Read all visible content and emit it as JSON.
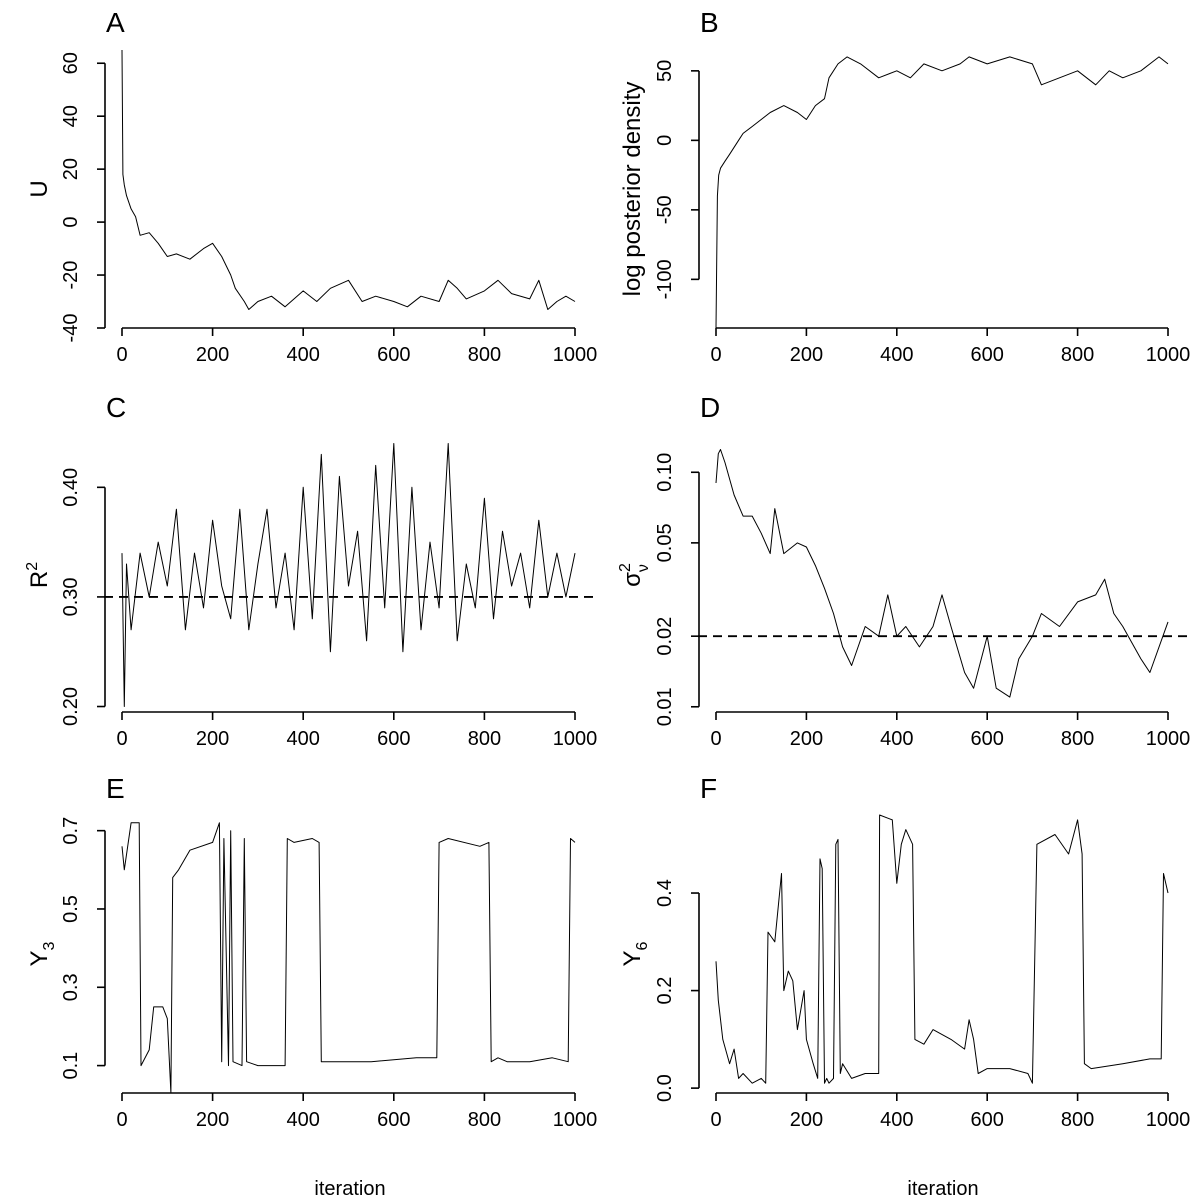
{
  "xlabel": "iteration",
  "chart_data": [
    {
      "panel": "A",
      "type": "line",
      "ylabel": "U",
      "xlim": [
        0,
        1000
      ],
      "ylim": [
        -40,
        65
      ],
      "xticks": [
        0,
        200,
        400,
        600,
        800,
        1000
      ],
      "yticks": [
        -40,
        -20,
        0,
        20,
        40,
        60
      ],
      "series": [
        {
          "x": [
            0,
            2,
            5,
            10,
            20,
            30,
            40,
            60,
            80,
            100,
            120,
            150,
            180,
            200,
            220,
            240,
            250,
            270,
            280,
            300,
            330,
            360,
            400,
            430,
            460,
            500,
            530,
            560,
            600,
            630,
            660,
            700,
            720,
            740,
            760,
            800,
            830,
            860,
            900,
            920,
            940,
            960,
            980,
            1000
          ],
          "y": [
            65,
            18,
            14,
            10,
            5,
            2,
            -5,
            -4,
            -8,
            -13,
            -12,
            -14,
            -10,
            -8,
            -13,
            -20,
            -25,
            -30,
            -33,
            -30,
            -28,
            -32,
            -26,
            -30,
            -25,
            -22,
            -30,
            -28,
            -30,
            -32,
            -28,
            -30,
            -22,
            -25,
            -29,
            -26,
            -22,
            -27,
            -29,
            -22,
            -33,
            -30,
            -28,
            -30
          ]
        }
      ]
    },
    {
      "panel": "B",
      "type": "line",
      "ylabel": "log posterior density",
      "xlim": [
        0,
        1000
      ],
      "ylim": [
        -135,
        65
      ],
      "xticks": [
        0,
        200,
        400,
        600,
        800,
        1000
      ],
      "yticks": [
        -100,
        -50,
        0,
        50
      ],
      "series": [
        {
          "x": [
            0,
            3,
            6,
            10,
            20,
            30,
            40,
            50,
            60,
            80,
            100,
            120,
            150,
            180,
            200,
            220,
            240,
            250,
            270,
            290,
            320,
            360,
            400,
            430,
            460,
            500,
            540,
            560,
            600,
            650,
            700,
            720,
            760,
            800,
            840,
            870,
            900,
            940,
            960,
            980,
            1000
          ],
          "y": [
            -135,
            -40,
            -25,
            -20,
            -15,
            -10,
            -5,
            0,
            5,
            10,
            15,
            20,
            25,
            20,
            15,
            25,
            30,
            45,
            55,
            60,
            55,
            45,
            50,
            45,
            55,
            50,
            55,
            60,
            55,
            60,
            55,
            40,
            45,
            50,
            40,
            50,
            45,
            50,
            55,
            60,
            55
          ]
        }
      ]
    },
    {
      "panel": "C",
      "type": "line",
      "ylabel": "R2",
      "xlim": [
        0,
        1000
      ],
      "ylim": [
        0.195,
        0.445
      ],
      "xticks": [
        0,
        200,
        400,
        600,
        800,
        1000
      ],
      "yticks": [
        0.2,
        0.3,
        0.4
      ],
      "reference_line": 0.3,
      "series": [
        {
          "x": [
            0,
            5,
            10,
            20,
            40,
            60,
            80,
            100,
            120,
            140,
            160,
            180,
            200,
            220,
            240,
            260,
            280,
            300,
            320,
            340,
            360,
            380,
            400,
            420,
            440,
            460,
            480,
            500,
            520,
            540,
            560,
            580,
            600,
            620,
            640,
            660,
            680,
            700,
            720,
            740,
            760,
            780,
            800,
            820,
            840,
            860,
            880,
            900,
            920,
            940,
            960,
            980,
            1000
          ],
          "y": [
            0.34,
            0.2,
            0.33,
            0.27,
            0.34,
            0.3,
            0.35,
            0.31,
            0.38,
            0.27,
            0.34,
            0.29,
            0.37,
            0.31,
            0.28,
            0.38,
            0.27,
            0.33,
            0.38,
            0.29,
            0.34,
            0.27,
            0.4,
            0.28,
            0.43,
            0.25,
            0.41,
            0.31,
            0.36,
            0.26,
            0.42,
            0.29,
            0.44,
            0.25,
            0.4,
            0.27,
            0.35,
            0.29,
            0.44,
            0.26,
            0.33,
            0.29,
            0.39,
            0.28,
            0.36,
            0.31,
            0.34,
            0.29,
            0.37,
            0.3,
            0.34,
            0.3,
            0.34
          ]
        }
      ]
    },
    {
      "panel": "D",
      "type": "line",
      "ylabel": "σ2ν",
      "yscale": "log",
      "xlim": [
        0,
        1000
      ],
      "ylim": [
        0.0095,
        0.14
      ],
      "xticks": [
        0,
        200,
        400,
        600,
        800,
        1000
      ],
      "yticks": [
        0.01,
        0.02,
        0.05,
        0.1
      ],
      "reference_line": 0.02,
      "series": [
        {
          "x": [
            0,
            5,
            10,
            20,
            40,
            60,
            80,
            100,
            120,
            130,
            150,
            180,
            200,
            220,
            240,
            260,
            280,
            300,
            330,
            360,
            380,
            400,
            420,
            450,
            480,
            500,
            520,
            550,
            570,
            600,
            620,
            650,
            670,
            700,
            720,
            760,
            800,
            840,
            860,
            880,
            900,
            940,
            960,
            1000
          ],
          "y": [
            0.09,
            0.12,
            0.125,
            0.11,
            0.08,
            0.065,
            0.065,
            0.055,
            0.045,
            0.07,
            0.045,
            0.05,
            0.048,
            0.04,
            0.032,
            0.025,
            0.018,
            0.015,
            0.022,
            0.02,
            0.03,
            0.02,
            0.022,
            0.018,
            0.022,
            0.03,
            0.022,
            0.014,
            0.012,
            0.02,
            0.012,
            0.011,
            0.016,
            0.02,
            0.025,
            0.022,
            0.028,
            0.03,
            0.035,
            0.025,
            0.022,
            0.016,
            0.014,
            0.023
          ]
        }
      ]
    },
    {
      "panel": "E",
      "type": "line",
      "ylabel": "Y3",
      "xlim": [
        0,
        1000
      ],
      "ylim": [
        0.03,
        0.74
      ],
      "xticks": [
        0,
        200,
        400,
        600,
        800,
        1000
      ],
      "yticks": [
        0.1,
        0.3,
        0.5,
        0.7
      ],
      "series": [
        {
          "x": [
            0,
            5,
            20,
            38,
            42,
            60,
            70,
            90,
            100,
            108,
            112,
            125,
            150,
            200,
            215,
            220,
            225,
            235,
            240,
            245,
            265,
            270,
            275,
            300,
            360,
            365,
            380,
            420,
            435,
            440,
            460,
            550,
            650,
            695,
            700,
            720,
            790,
            810,
            815,
            830,
            850,
            900,
            950,
            985,
            990,
            1000
          ],
          "y": [
            0.66,
            0.6,
            0.72,
            0.72,
            0.1,
            0.14,
            0.25,
            0.25,
            0.22,
            0.03,
            0.58,
            0.6,
            0.65,
            0.67,
            0.72,
            0.11,
            0.68,
            0.1,
            0.7,
            0.11,
            0.1,
            0.68,
            0.11,
            0.1,
            0.1,
            0.68,
            0.67,
            0.68,
            0.67,
            0.11,
            0.11,
            0.11,
            0.12,
            0.12,
            0.67,
            0.68,
            0.66,
            0.67,
            0.11,
            0.12,
            0.11,
            0.11,
            0.12,
            0.11,
            0.68,
            0.67
          ]
        }
      ]
    },
    {
      "panel": "F",
      "type": "line",
      "ylabel": "Y6",
      "xlim": [
        0,
        1000
      ],
      "ylim": [
        -0.01,
        0.56
      ],
      "xticks": [
        0,
        200,
        400,
        600,
        800,
        1000
      ],
      "yticks": [
        0.0,
        0.2,
        0.4
      ],
      "series": [
        {
          "x": [
            0,
            5,
            15,
            30,
            40,
            50,
            60,
            80,
            100,
            110,
            115,
            130,
            145,
            150,
            160,
            170,
            180,
            195,
            200,
            215,
            225,
            230,
            235,
            240,
            245,
            250,
            260,
            265,
            270,
            275,
            280,
            300,
            330,
            360,
            362,
            390,
            400,
            410,
            420,
            435,
            440,
            460,
            480,
            520,
            550,
            560,
            570,
            580,
            600,
            650,
            690,
            700,
            710,
            750,
            780,
            800,
            810,
            815,
            830,
            900,
            960,
            985,
            990,
            1000
          ],
          "y": [
            0.26,
            0.18,
            0.1,
            0.05,
            0.08,
            0.02,
            0.03,
            0.01,
            0.02,
            0.01,
            0.32,
            0.3,
            0.44,
            0.2,
            0.24,
            0.22,
            0.12,
            0.2,
            0.1,
            0.05,
            0.02,
            0.47,
            0.45,
            0.01,
            0.02,
            0.01,
            0.02,
            0.5,
            0.51,
            0.03,
            0.05,
            0.02,
            0.03,
            0.03,
            0.56,
            0.55,
            0.42,
            0.5,
            0.53,
            0.5,
            0.1,
            0.09,
            0.12,
            0.1,
            0.08,
            0.14,
            0.1,
            0.03,
            0.04,
            0.04,
            0.03,
            0.01,
            0.5,
            0.52,
            0.48,
            0.55,
            0.48,
            0.05,
            0.04,
            0.05,
            0.06,
            0.06,
            0.44,
            0.4
          ]
        }
      ]
    }
  ]
}
